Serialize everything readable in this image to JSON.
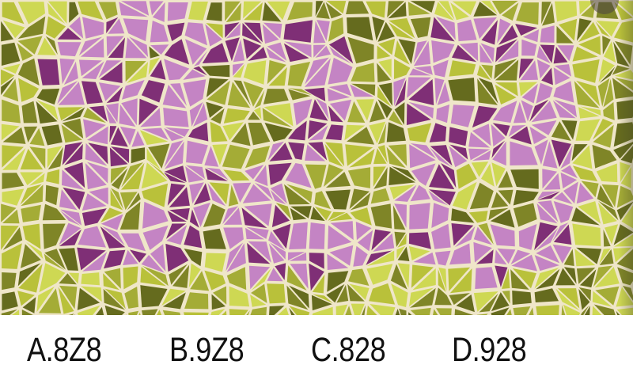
{
  "plate": {
    "background_color": "#efe6c9",
    "figure_color_main": "#c484c4",
    "figure_color_dark": "#7f2f76",
    "ground_colors": [
      "#b9c13a",
      "#a4ac36",
      "#7f8527",
      "#656b1e",
      "#ced853"
    ]
  },
  "options": [
    {
      "label": "A.8Z8"
    },
    {
      "label": "B.9Z8"
    },
    {
      "label": "C.828"
    },
    {
      "label": "D.928"
    }
  ]
}
